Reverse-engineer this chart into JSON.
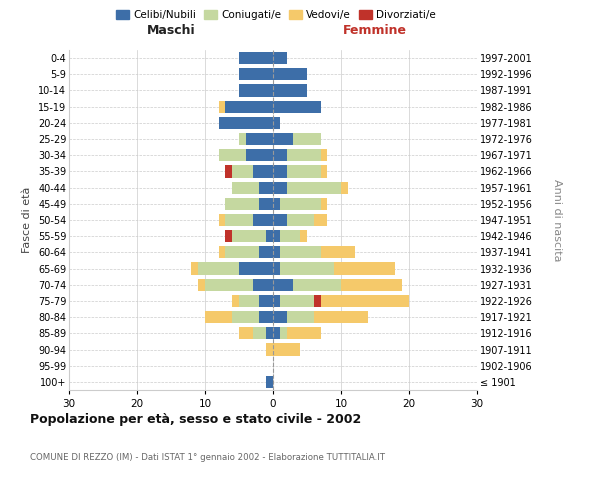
{
  "age_groups": [
    "100+",
    "95-99",
    "90-94",
    "85-89",
    "80-84",
    "75-79",
    "70-74",
    "65-69",
    "60-64",
    "55-59",
    "50-54",
    "45-49",
    "40-44",
    "35-39",
    "30-34",
    "25-29",
    "20-24",
    "15-19",
    "10-14",
    "5-9",
    "0-4"
  ],
  "birth_years": [
    "≤ 1901",
    "1902-1906",
    "1907-1911",
    "1912-1916",
    "1917-1921",
    "1922-1926",
    "1927-1931",
    "1932-1936",
    "1937-1941",
    "1942-1946",
    "1947-1951",
    "1952-1956",
    "1957-1961",
    "1962-1966",
    "1967-1971",
    "1972-1976",
    "1977-1981",
    "1982-1986",
    "1987-1991",
    "1992-1996",
    "1997-2001"
  ],
  "colors": {
    "celibe": "#3d6ea8",
    "coniugato": "#c5d8a0",
    "vedovo": "#f5c96a",
    "divorziato": "#c0322a"
  },
  "males": {
    "celibe": [
      1,
      0,
      0,
      1,
      2,
      2,
      3,
      5,
      2,
      1,
      3,
      2,
      2,
      3,
      4,
      4,
      8,
      7,
      5,
      5,
      5
    ],
    "coniugato": [
      0,
      0,
      0,
      2,
      4,
      3,
      7,
      6,
      5,
      5,
      4,
      5,
      4,
      3,
      4,
      1,
      0,
      0,
      0,
      0,
      0
    ],
    "vedovo": [
      0,
      0,
      1,
      2,
      4,
      1,
      1,
      1,
      1,
      0,
      1,
      0,
      0,
      0,
      0,
      0,
      0,
      1,
      0,
      0,
      0
    ],
    "divorziato": [
      0,
      0,
      0,
      0,
      0,
      0,
      0,
      0,
      0,
      1,
      0,
      0,
      0,
      1,
      0,
      0,
      0,
      0,
      0,
      0,
      0
    ]
  },
  "females": {
    "nubile": [
      0,
      0,
      0,
      1,
      2,
      1,
      3,
      1,
      1,
      1,
      2,
      1,
      2,
      2,
      2,
      3,
      1,
      7,
      5,
      5,
      2
    ],
    "coniugata": [
      0,
      0,
      0,
      1,
      4,
      5,
      7,
      8,
      6,
      3,
      4,
      6,
      8,
      5,
      5,
      4,
      0,
      0,
      0,
      0,
      0
    ],
    "vedova": [
      0,
      0,
      4,
      5,
      8,
      13,
      9,
      9,
      5,
      1,
      2,
      1,
      1,
      1,
      1,
      0,
      0,
      0,
      0,
      0,
      0
    ],
    "divorziata": [
      0,
      0,
      0,
      0,
      0,
      1,
      0,
      0,
      0,
      0,
      0,
      0,
      0,
      0,
      0,
      0,
      0,
      0,
      0,
      0,
      0
    ]
  },
  "xlim": 30,
  "title": "Popolazione per età, sesso e stato civile - 2002",
  "subtitle": "COMUNE DI REZZO (IM) - Dati ISTAT 1° gennaio 2002 - Elaborazione TUTTITALIA.IT",
  "xlabel_left": "Maschi",
  "xlabel_right": "Femmine",
  "ylabel_left": "Fasce di età",
  "ylabel_right": "Anni di nascita",
  "legend_labels": [
    "Celibi/Nubili",
    "Coniugati/e",
    "Vedovi/e",
    "Divorziati/e"
  ]
}
